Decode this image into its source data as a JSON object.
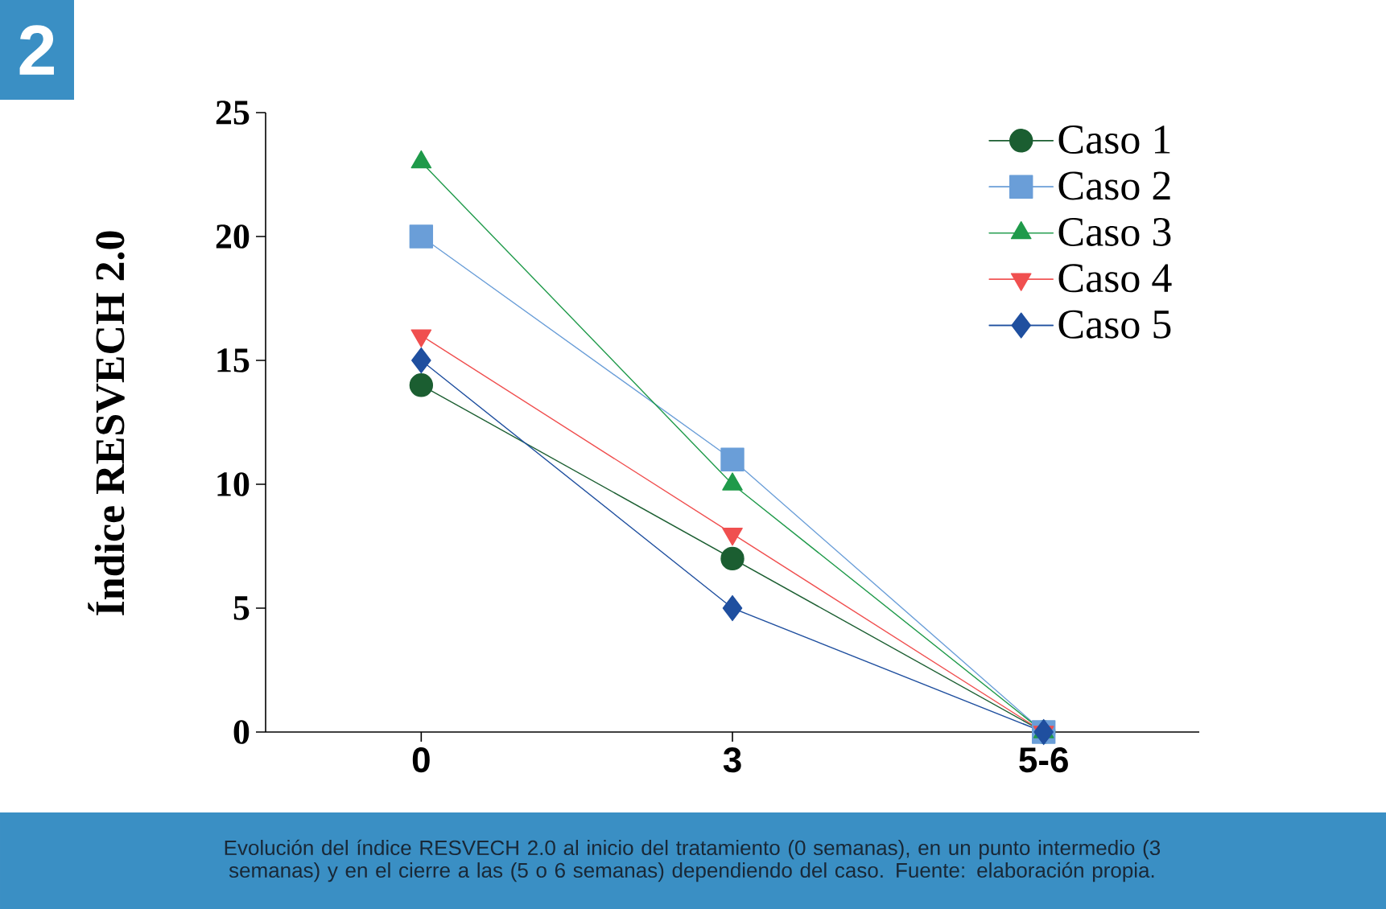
{
  "chart_data": {
    "type": "line",
    "title": "2",
    "ylabel": "Índice RESVECH 2.0",
    "categories": [
      "0",
      "3",
      "5-6"
    ],
    "series": [
      {
        "name": "Caso 1",
        "color": "#1b5e31",
        "marker": "circle",
        "values": [
          14,
          7,
          0
        ]
      },
      {
        "name": "Caso 2",
        "color": "#6a9ed8",
        "marker": "square",
        "values": [
          20,
          11,
          0
        ]
      },
      {
        "name": "Caso 3",
        "color": "#1f9a4a",
        "marker": "triangle",
        "values": [
          23,
          10,
          0
        ]
      },
      {
        "name": "Caso 4",
        "color": "#f04f4f",
        "marker": "triangle-down",
        "values": [
          16,
          8,
          0
        ]
      },
      {
        "name": "Caso 5",
        "color": "#1f4f9f",
        "marker": "diamond",
        "values": [
          15,
          5,
          0
        ]
      }
    ],
    "ylim": [
      0,
      25
    ],
    "yticks": [
      0,
      5,
      10,
      15,
      20,
      25
    ],
    "grid": false,
    "legend": "top right",
    "line_style": "solid",
    "annotations": [
      "Evolución del índice RESVECH 2.0 al inicio del tratamiento (0 semanas), en un punto intermedio (3 semanas) y en el cierre a las (5 o 6 semanas) dependiendo del caso. Fuente: elaboración propia."
    ]
  }
}
